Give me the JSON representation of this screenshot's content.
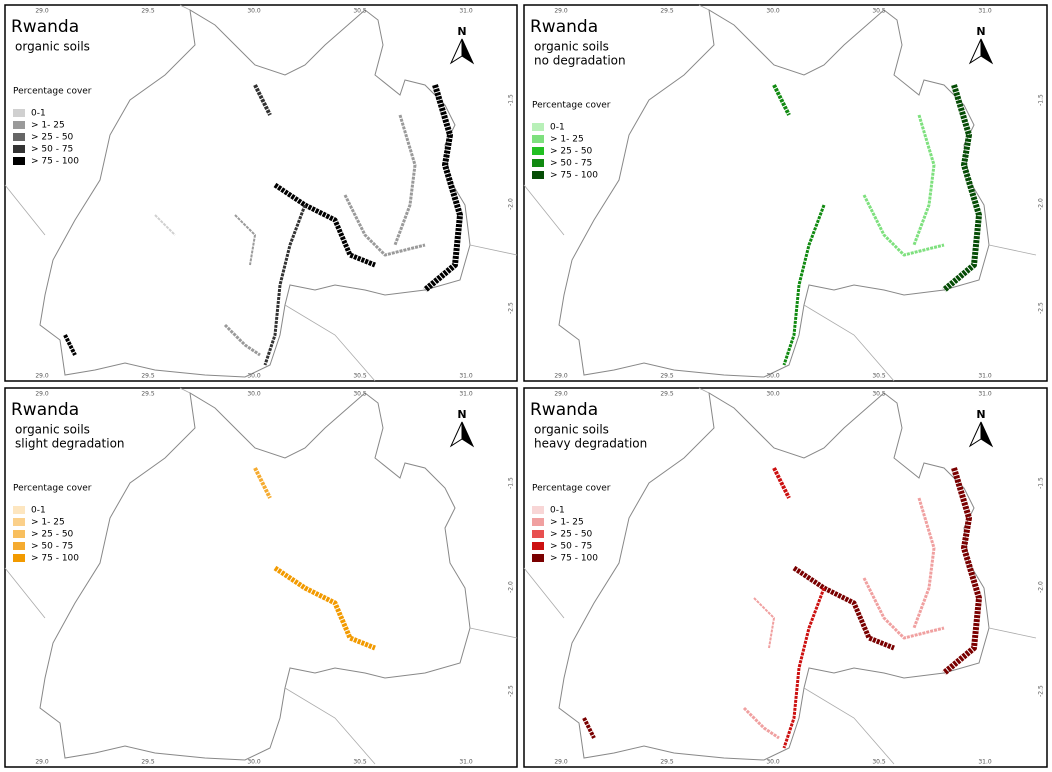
{
  "panels": [
    {
      "title": "Rwanda",
      "subtitle": [
        "organic soils"
      ],
      "legend_title": "Percentage cover",
      "legend": [
        {
          "label": "0-1",
          "color": "#d0d0d0"
        },
        {
          "label": "> 1- 25",
          "color": "#9a9a9a"
        },
        {
          "label": "> 25 - 50",
          "color": "#666666"
        },
        {
          "label": "> 50 - 75",
          "color": "#333333"
        },
        {
          "label": "> 75 - 100",
          "color": "#000000"
        }
      ]
    },
    {
      "title": "Rwanda",
      "subtitle": [
        "organic soils",
        "no degradation"
      ],
      "legend_title": "Percentage cover",
      "legend": [
        {
          "label": "0-1",
          "color": "#b8f0b8"
        },
        {
          "label": "> 1- 25",
          "color": "#7ee07e"
        },
        {
          "label": "> 25 - 50",
          "color": "#22c022"
        },
        {
          "label": "> 50 - 75",
          "color": "#118a11"
        },
        {
          "label": "> 75 - 100",
          "color": "#064d06"
        }
      ]
    },
    {
      "title": "Rwanda",
      "subtitle": [
        "organic soils",
        "slight degradation"
      ],
      "legend_title": "Percentage cover",
      "legend": [
        {
          "label": "0-1",
          "color": "#fde6c0"
        },
        {
          "label": "> 1- 25",
          "color": "#fbd08a"
        },
        {
          "label": "> 25 - 50",
          "color": "#f8bf5e"
        },
        {
          "label": "> 50 - 75",
          "color": "#f5ab30"
        },
        {
          "label": "> 75 - 100",
          "color": "#f29a00"
        }
      ]
    },
    {
      "title": "Rwanda",
      "subtitle": [
        "organic soils",
        "heavy degradation"
      ],
      "legend_title": "Percentage cover",
      "legend": [
        {
          "label": "0-1",
          "color": "#f8d6d6"
        },
        {
          "label": "> 1- 25",
          "color": "#f0a0a0"
        },
        {
          "label": "> 25 - 50",
          "color": "#e85050"
        },
        {
          "label": "> 50 - 75",
          "color": "#cc1010"
        },
        {
          "label": "> 75 - 100",
          "color": "#7a0000"
        }
      ]
    }
  ],
  "north_label": "N",
  "x_ticks": [
    "29.0",
    "29.5",
    "30.0",
    "30.5",
    "31.0"
  ],
  "y_ticks": [
    "-1.5",
    "-2.0",
    "-2.5"
  ]
}
